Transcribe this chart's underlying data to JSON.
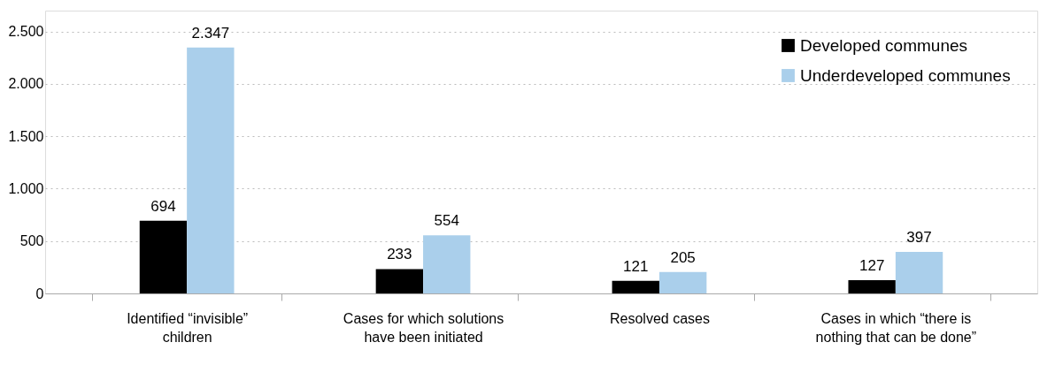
{
  "chart_data": {
    "type": "bar",
    "categories": [
      "Identified “invisible” children",
      "Cases for which solutions have been initiated",
      "Resolved cases",
      "Cases in which “there is nothing that can be done”"
    ],
    "series": [
      {
        "name": "Developed communes",
        "color": "#000000",
        "values": [
          694,
          233,
          121,
          127
        ],
        "value_labels": [
          "694",
          "233",
          "121",
          "127"
        ]
      },
      {
        "name": "Underdeveloped communes",
        "color": "#aacfeb",
        "values": [
          2347,
          554,
          205,
          397
        ],
        "value_labels": [
          "2.347",
          "554",
          "205",
          "397"
        ]
      }
    ],
    "ylim": [
      0,
      2700
    ],
    "yticks": [
      {
        "value": 0,
        "label": "0"
      },
      {
        "value": 500,
        "label": "500"
      },
      {
        "value": 1000,
        "label": "1.000"
      },
      {
        "value": 1500,
        "label": "1.500"
      },
      {
        "value": 2000,
        "label": "2.000"
      },
      {
        "value": 2500,
        "label": "2.500"
      }
    ],
    "grid": "y",
    "legend": "top right"
  }
}
